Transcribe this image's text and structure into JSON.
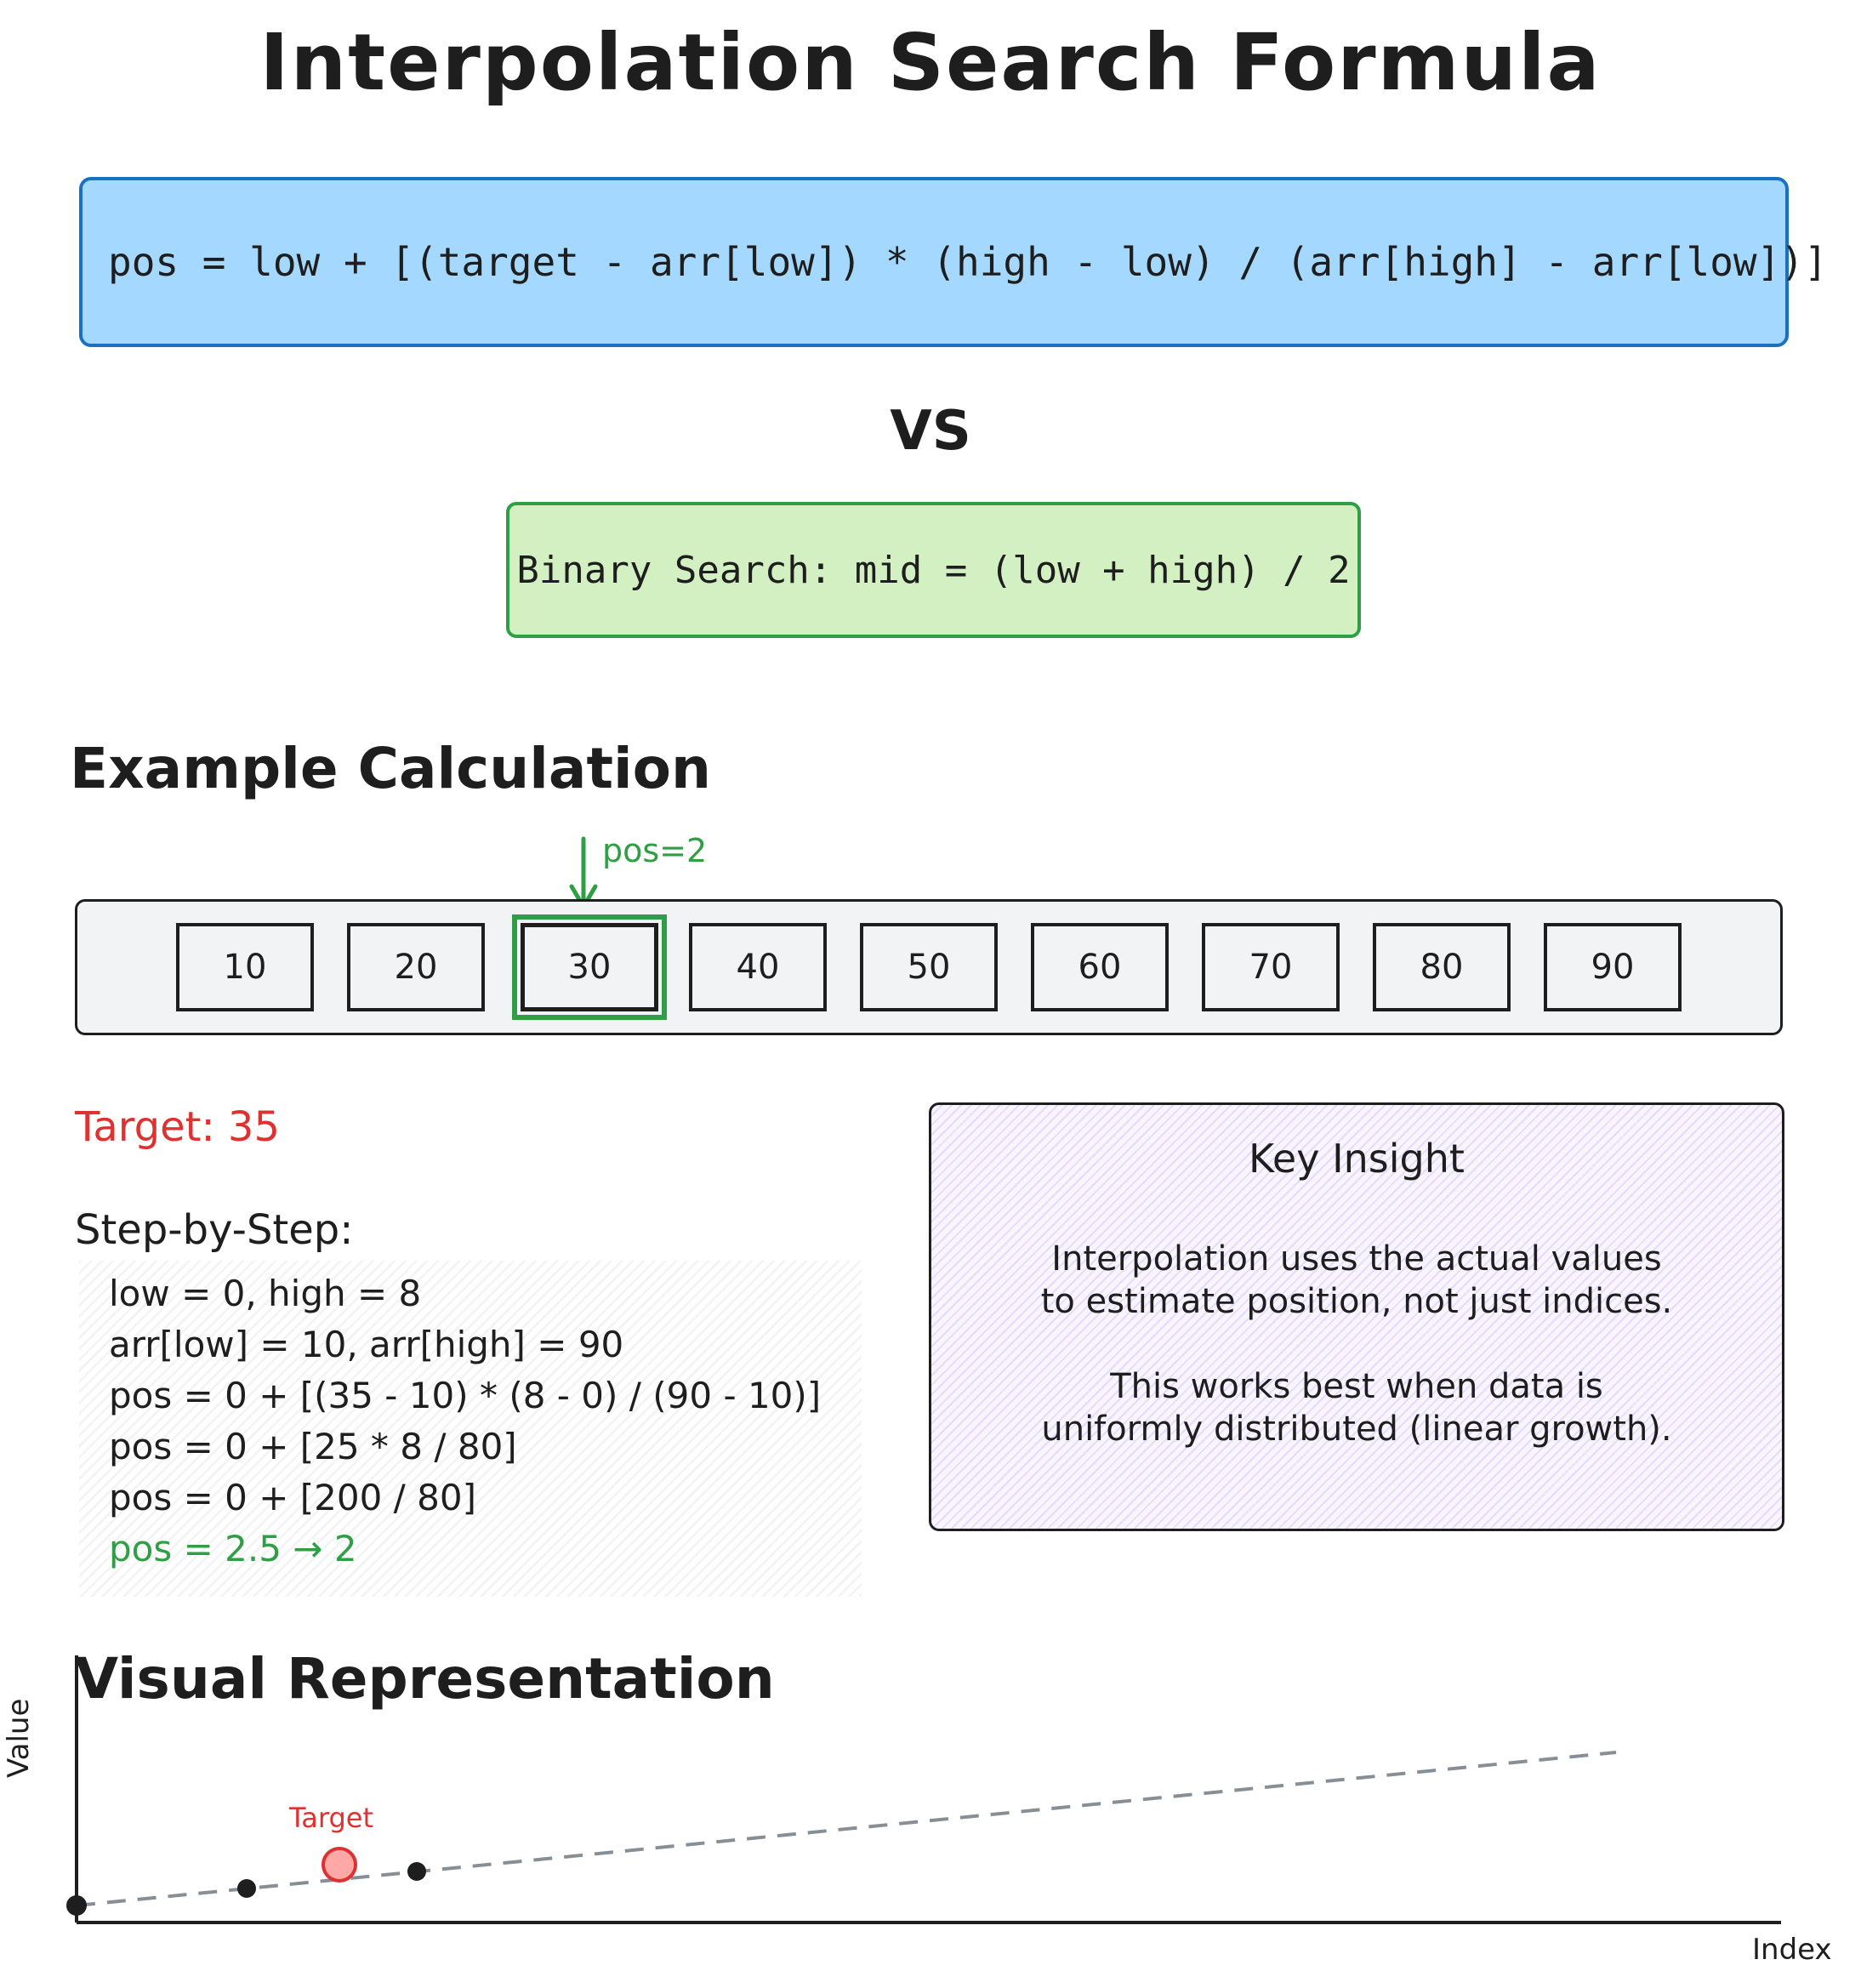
{
  "title": "Interpolation Search Formula",
  "formula": {
    "text": "pos = low + [(target - arr[low]) * (high - low) / (arr[high] - arr[low])]",
    "bg_color": "#a5d8ff",
    "border_color": "#1971c2"
  },
  "vs_label": "VS",
  "binary": {
    "text": "Binary Search: mid = (low + high) / 2",
    "bg_color": "#d2f0c1",
    "border_color": "#2f9e44"
  },
  "example": {
    "heading": "Example Calculation",
    "array": [
      "10",
      "20",
      "30",
      "40",
      "50",
      "60",
      "70",
      "80",
      "90"
    ],
    "highlight_index": 2,
    "pos_label": "pos=2",
    "target_label": "Target: 35",
    "steps_heading": "Step-by-Step:",
    "steps": [
      "low = 0, high = 8",
      "arr[low] = 10, arr[high] = 90",
      "pos = 0 + [(35 - 10) * (8 - 0) / (90 - 10)]",
      "pos = 0 + [25 * 8 / 80]",
      "pos = 0 + [200 / 80]",
      "pos = 2.5 → 2"
    ]
  },
  "insight": {
    "title": "Key Insight",
    "para1_line1": "Interpolation uses the actual values",
    "para1_line2": "to estimate position, not just indices.",
    "para2_line1": "This works best when data is",
    "para2_line2": "uniformly distributed (linear growth)."
  },
  "visual": {
    "heading": "Visual Representation",
    "ylabel": "Value",
    "xlabel": "Index",
    "target_label": "Target"
  },
  "colors": {
    "accent_green": "#2f9e44",
    "target_red": "#e03131",
    "insight_bg": "#e5dbff"
  }
}
